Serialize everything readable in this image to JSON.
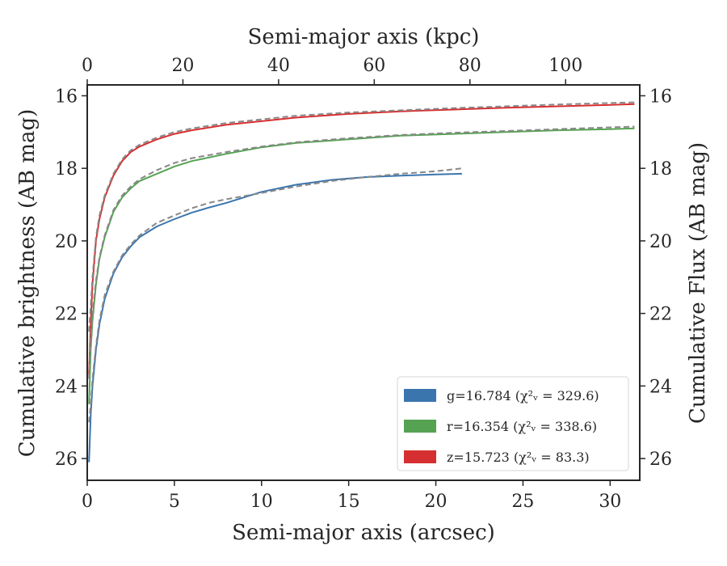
{
  "chart_data": {
    "type": "line",
    "xlabel": "Semi-major axis (arcsec)",
    "ylabel": "Cumulative brightness (AB mag)",
    "top_xlabel": "Semi-major axis (kpc)",
    "right_ylabel": "Cumulative Flux (AB mag)",
    "xlim": [
      0,
      31.7
    ],
    "ylim": [
      26.6,
      15.7
    ],
    "y_inverted": true,
    "top_xlim": [
      0,
      115.5
    ],
    "x_ticks": [
      0,
      5,
      10,
      15,
      20,
      25,
      30
    ],
    "y_ticks": [
      16,
      18,
      20,
      22,
      24,
      26
    ],
    "top_x_ticks": [
      0,
      20,
      40,
      60,
      80,
      100
    ],
    "grid": false,
    "legend_position": "lower-right",
    "series": [
      {
        "name": "z",
        "legend": "z=15.723 (χ²ᵥ = 83.3)",
        "color": "#d62f31",
        "x": [
          0.1,
          0.2,
          0.3,
          0.5,
          0.7,
          1.0,
          1.5,
          2.0,
          2.5,
          3.0,
          4.0,
          5.0,
          6.0,
          8.0,
          10.0,
          12.0,
          15.0,
          18.0,
          21.0,
          24.0,
          27.0,
          30.0,
          31.4
        ],
        "y": [
          23.7,
          22.3,
          21.2,
          20.0,
          19.4,
          18.8,
          18.2,
          17.8,
          17.55,
          17.4,
          17.2,
          17.05,
          16.95,
          16.8,
          16.7,
          16.6,
          16.5,
          16.43,
          16.38,
          16.33,
          16.29,
          16.25,
          16.23
        ]
      },
      {
        "name": "z-model",
        "color": "#888888",
        "x": [
          0.1,
          0.2,
          0.3,
          0.5,
          0.7,
          1.0,
          1.5,
          2.0,
          2.5,
          3.0,
          4.0,
          5.0,
          6.0,
          8.0,
          10.0,
          12.0,
          15.0,
          18.0,
          21.0,
          24.0,
          27.0,
          30.0,
          31.4
        ],
        "y": [
          22.5,
          21.8,
          21.0,
          19.9,
          19.3,
          18.75,
          18.15,
          17.75,
          17.5,
          17.35,
          17.15,
          17.0,
          16.9,
          16.75,
          16.65,
          16.55,
          16.46,
          16.4,
          16.34,
          16.29,
          16.24,
          16.2,
          16.18
        ]
      },
      {
        "name": "r",
        "legend": "r=16.354 (χ²ᵥ = 338.6)",
        "color": "#55a352",
        "x": [
          0.1,
          0.2,
          0.3,
          0.5,
          0.7,
          1.0,
          1.5,
          2.0,
          2.5,
          3.0,
          4.0,
          5.0,
          6.0,
          8.0,
          10.0,
          12.0,
          15.0,
          18.0,
          21.0,
          24.0,
          27.0,
          30.0,
          31.4
        ],
        "y": [
          24.5,
          23.0,
          22.2,
          21.2,
          20.5,
          19.9,
          19.2,
          18.8,
          18.55,
          18.35,
          18.15,
          17.95,
          17.8,
          17.6,
          17.42,
          17.3,
          17.2,
          17.1,
          17.05,
          17.0,
          16.95,
          16.92,
          16.9
        ]
      },
      {
        "name": "r-model",
        "color": "#888888",
        "x": [
          0.1,
          0.2,
          0.3,
          0.5,
          0.7,
          1.0,
          1.5,
          2.0,
          2.5,
          3.0,
          4.0,
          5.0,
          6.0,
          8.0,
          10.0,
          12.0,
          15.0,
          18.0,
          21.0,
          24.0,
          27.0,
          30.0,
          31.4
        ],
        "y": [
          23.8,
          22.8,
          22.0,
          21.1,
          20.45,
          19.85,
          19.15,
          18.75,
          18.5,
          18.3,
          18.05,
          17.85,
          17.72,
          17.55,
          17.4,
          17.28,
          17.17,
          17.08,
          17.02,
          16.97,
          16.92,
          16.87,
          16.85
        ]
      },
      {
        "name": "g",
        "legend": "g=16.784 (χ²ᵥ = 329.6)",
        "color": "#3b75ae",
        "x": [
          0.1,
          0.2,
          0.3,
          0.5,
          0.7,
          1.0,
          1.5,
          2.0,
          2.5,
          3.0,
          4.0,
          5.0,
          6.0,
          7.0,
          8.0,
          10.0,
          12.0,
          14.0,
          16.0,
          18.0,
          20.0,
          21.5
        ],
        "y": [
          26.1,
          24.8,
          24.0,
          23.0,
          22.3,
          21.6,
          20.9,
          20.45,
          20.15,
          19.9,
          19.6,
          19.4,
          19.22,
          19.08,
          18.95,
          18.65,
          18.45,
          18.32,
          18.24,
          18.2,
          18.17,
          18.15
        ]
      },
      {
        "name": "g-model",
        "color": "#888888",
        "x": [
          0.1,
          0.2,
          0.3,
          0.5,
          0.7,
          1.0,
          1.5,
          2.0,
          2.5,
          3.0,
          4.0,
          5.0,
          6.0,
          7.0,
          8.0,
          10.0,
          12.0,
          14.0,
          16.0,
          18.0,
          20.0,
          21.5
        ],
        "y": [
          25.0,
          24.5,
          23.8,
          22.9,
          22.2,
          21.5,
          20.85,
          20.4,
          20.1,
          19.85,
          19.5,
          19.3,
          19.1,
          18.95,
          18.85,
          18.68,
          18.5,
          18.35,
          18.24,
          18.15,
          18.08,
          18.0
        ]
      }
    ]
  }
}
